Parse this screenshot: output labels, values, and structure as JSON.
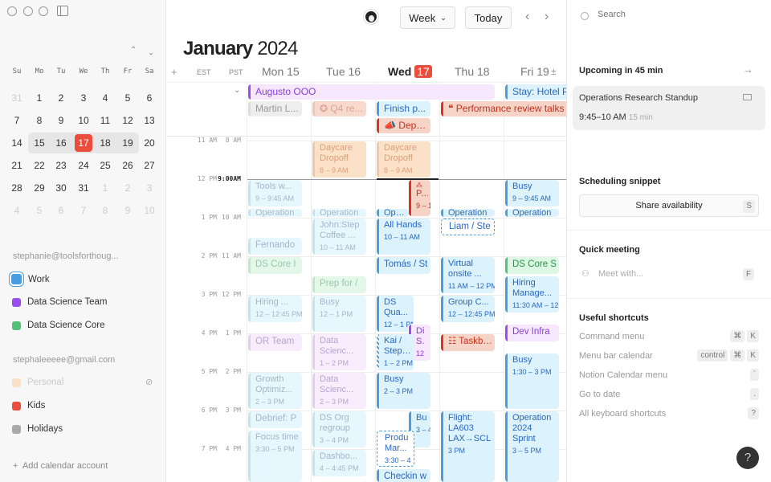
{
  "sidebar": {
    "mini_calendar": {
      "weekdays": [
        "Su",
        "Mo",
        "Tu",
        "We",
        "Th",
        "Fr",
        "Sa"
      ],
      "weeks": [
        [
          31,
          1,
          2,
          3,
          4,
          5,
          6
        ],
        [
          7,
          8,
          9,
          10,
          11,
          12,
          13
        ],
        [
          14,
          15,
          16,
          17,
          18,
          19,
          20
        ],
        [
          21,
          22,
          23,
          24,
          25,
          26,
          27
        ],
        [
          28,
          29,
          30,
          31,
          1,
          2,
          3
        ],
        [
          4,
          5,
          6,
          7,
          8,
          9,
          10
        ]
      ],
      "today": 17
    },
    "accounts": [
      {
        "email": "stephanie@toolsforthoug...",
        "calendars": [
          {
            "name": "Work",
            "color": "#4a9de0",
            "selected": true
          },
          {
            "name": "Data Science Team",
            "color": "#9b4ef0"
          },
          {
            "name": "Data Science Core",
            "color": "#52c279"
          }
        ]
      },
      {
        "email": "stephaleeeee@gmail.com",
        "calendars": [
          {
            "name": "Personal",
            "color": "#f9e0c7",
            "hidden": true
          },
          {
            "name": "Kids",
            "color": "#eb4d3d"
          },
          {
            "name": "Holidays",
            "color": "#aaaaaa",
            "icon": "rss-icon"
          }
        ]
      }
    ],
    "add_account": "Add calendar account"
  },
  "header": {
    "view": "Week",
    "today": "Today",
    "month": "January",
    "year": "2024",
    "tz1": "EST",
    "tz2": "PST",
    "days": [
      {
        "name": "Mon",
        "num": "15"
      },
      {
        "name": "Tue",
        "num": "16"
      },
      {
        "name": "Wed",
        "num": "17",
        "today": true
      },
      {
        "name": "Thu",
        "num": "18"
      },
      {
        "name": "Fri",
        "num": "19"
      }
    ]
  },
  "time_labels": {
    "est": [
      "11 AM",
      "12 PM",
      "1 PM",
      "2 PM",
      "3 PM",
      "4 PM",
      "5 PM",
      "6 PM",
      "7 PM"
    ],
    "pst": [
      "8 AM",
      "9:00AM",
      "10 AM",
      "11 AM",
      "12 PM",
      "1 PM",
      "2 PM",
      "3 PM",
      "4 PM"
    ]
  },
  "now": "09:00",
  "allday": [
    {
      "title": "Augusto OOO",
      "start": "Mon",
      "end": "Thu",
      "style": "purple"
    },
    {
      "title": "Stay: Hotel P",
      "start": "Fri",
      "end": "Fri",
      "style": "blue"
    },
    {
      "title": "Martin L...",
      "start": "Mon",
      "end": "Mon",
      "style": "gray"
    },
    {
      "title": "✪ Q4 re...",
      "start": "Tue",
      "end": "Tue",
      "style": "red",
      "past": true
    },
    {
      "title": "Finish p...",
      "start": "Wed",
      "end": "Wed",
      "style": "blue"
    },
    {
      "title": "❝ Performance review talks",
      "start": "Thu",
      "end": "Fri",
      "style": "red"
    },
    {
      "title": "📣 Dept ...",
      "start": "Wed",
      "end": "Wed",
      "style": "red"
    }
  ],
  "events": [
    {
      "day": "Mon",
      "start": "09:00",
      "end": "09:45",
      "title": "Tools w...",
      "time": "9 – 9:45 AM",
      "style": "blue",
      "past": true
    },
    {
      "day": "Mon",
      "start": "09:45",
      "end": "10:00",
      "title": "Operation",
      "style": "blue",
      "past": true
    },
    {
      "day": "Mon",
      "start": "10:30",
      "end": "11:00",
      "title": "Fernando",
      "style": "blue",
      "past": true
    },
    {
      "day": "Mon",
      "start": "11:00",
      "end": "11:30",
      "title": "DS Core I",
      "style": "green",
      "past": true
    },
    {
      "day": "Mon",
      "start": "12:00",
      "end": "12:45",
      "title": "Hiring ...",
      "time": "12 – 12:45 PM",
      "style": "blue",
      "past": true
    },
    {
      "day": "Mon",
      "start": "13:00",
      "end": "13:30",
      "title": "OR Team",
      "style": "purple",
      "past": true
    },
    {
      "day": "Mon",
      "start": "14:00",
      "end": "15:00",
      "title": "Growth Optimiz...",
      "time": "2 – 3 PM",
      "style": "blue",
      "past": true
    },
    {
      "day": "Mon",
      "start": "15:00",
      "end": "15:30",
      "title": "Debrief: P",
      "style": "blue",
      "past": true
    },
    {
      "day": "Mon",
      "start": "15:30",
      "end": "17:00",
      "title": "Focus time",
      "time": "3:30 – 5 PM",
      "style": "blue",
      "past": true
    },
    {
      "day": "Tue",
      "start": "08:00",
      "end": "09:00",
      "title": "Daycare Dropoff",
      "time": "8 – 9 AM",
      "style": "peach",
      "past": true
    },
    {
      "day": "Tue",
      "start": "09:45",
      "end": "10:00",
      "title": "Operation",
      "style": "blue",
      "past": true
    },
    {
      "day": "Tue",
      "start": "10:00",
      "end": "11:00",
      "title": "John:Step Coffee ...",
      "time": "10 – 11 AM",
      "style": "blue",
      "past": true
    },
    {
      "day": "Tue",
      "start": "11:30",
      "end": "12:00",
      "title": "Prep for /",
      "style": "green",
      "past": true
    },
    {
      "day": "Tue",
      "start": "12:00",
      "end": "13:00",
      "title": "Busy",
      "time": "12 – 1 PM",
      "style": "blue",
      "past": true
    },
    {
      "day": "Tue",
      "start": "13:00",
      "end": "14:00",
      "title": "Data Scienc...",
      "time": "1 – 2 PM",
      "style": "purple",
      "past": true
    },
    {
      "day": "Tue",
      "start": "14:00",
      "end": "15:00",
      "title": "Data Scienc...",
      "time": "2 – 3 PM",
      "style": "purple",
      "past": true
    },
    {
      "day": "Tue",
      "start": "15:00",
      "end": "16:00",
      "title": "DS Org regroup",
      "time": "3 – 4 PM",
      "style": "blue",
      "past": true
    },
    {
      "day": "Tue",
      "start": "16:00",
      "end": "16:45",
      "title": "Dashbo...",
      "time": "4 – 4:45 PM",
      "style": "blue",
      "past": true
    },
    {
      "day": "Wed",
      "start": "08:00",
      "end": "09:00",
      "title": "Daycare Dropoff",
      "time": "8 – 9 AM",
      "style": "peach",
      "past": true
    },
    {
      "day": "Wed",
      "start": "09:00",
      "end": "10:00",
      "title": "P...",
      "time": "9 – 10 AM",
      "style": "red",
      "icon": "people-icon"
    },
    {
      "day": "Wed",
      "start": "09:45",
      "end": "10:00",
      "title": "Operation",
      "style": "blue"
    },
    {
      "day": "Wed",
      "start": "10:00",
      "end": "11:00",
      "title": "All Hands",
      "time": "10 – 11 AM",
      "style": "blue"
    },
    {
      "day": "Wed",
      "start": "11:00",
      "end": "11:30",
      "title": "Tomás / St",
      "style": "blue"
    },
    {
      "day": "Wed",
      "start": "12:00",
      "end": "13:00",
      "title": "DS Qua...",
      "time": "12 – 1 PM",
      "style": "blue"
    },
    {
      "day": "Wed",
      "start": "12:45",
      "end": "13:45",
      "title": "Di S.",
      "time": "12",
      "style": "purple"
    },
    {
      "day": "Wed",
      "start": "13:00",
      "end": "14:00",
      "title": "Kai / Stepha",
      "time": "1 – 2 PM",
      "style": "blue",
      "striped": true
    },
    {
      "day": "Wed",
      "start": "14:00",
      "end": "15:00",
      "title": "Busy",
      "time": "2 – 3 PM",
      "style": "blue"
    },
    {
      "day": "Wed",
      "start": "15:00",
      "end": "16:00",
      "title": "Bu",
      "time": "3 – 4",
      "style": "blue"
    },
    {
      "day": "Wed",
      "start": "15:30",
      "end": "16:30",
      "title": "Produ Mar...",
      "time": "3:30 – 4",
      "style": "dashed"
    },
    {
      "day": "Wed",
      "start": "16:30",
      "end": "17:00",
      "title": "Checkin w",
      "style": "blue"
    },
    {
      "day": "Thu",
      "start": "09:45",
      "end": "10:00",
      "title": "Operation",
      "style": "blue"
    },
    {
      "day": "Thu",
      "start": "10:00",
      "end": "10:30",
      "title": "Liam / Ste",
      "style": "dashed"
    },
    {
      "day": "Thu",
      "start": "11:00",
      "end": "12:00",
      "title": "Virtual onsite ...",
      "time": "11 AM – 12 PM",
      "style": "blue"
    },
    {
      "day": "Thu",
      "start": "12:00",
      "end": "12:45",
      "title": "Group C...",
      "time": "12 – 12:45 PM",
      "style": "blue"
    },
    {
      "day": "Thu",
      "start": "13:00",
      "end": "13:30",
      "title": "☷ Taskboa",
      "style": "red"
    },
    {
      "day": "Thu",
      "start": "15:00",
      "end": "17:00",
      "title": "Flight: LA603 LAX→SCL",
      "time": "3 PM",
      "style": "blue"
    },
    {
      "day": "Fri",
      "start": "09:00",
      "end": "09:45",
      "title": "Busy",
      "time": "9 – 9:45 AM",
      "style": "blue"
    },
    {
      "day": "Fri",
      "start": "09:45",
      "end": "10:00",
      "title": "Operation",
      "style": "blue"
    },
    {
      "day": "Fri",
      "start": "11:00",
      "end": "11:30",
      "title": "DS Core S",
      "style": "green"
    },
    {
      "day": "Fri",
      "start": "11:30",
      "end": "12:30",
      "title": "Hiring Manage...",
      "time": "11:30 AM – 12",
      "style": "blue"
    },
    {
      "day": "Fri",
      "start": "12:45",
      "end": "13:15",
      "title": "Dev Infra",
      "style": "purple"
    },
    {
      "day": "Fri",
      "start": "13:30",
      "end": "15:00",
      "title": "Busy",
      "time": "1:30 – 3 PM",
      "style": "blue"
    },
    {
      "day": "Fri",
      "start": "15:00",
      "end": "17:00",
      "title": "Operation 2024 Sprint Planning",
      "time": "3 – 5 PM",
      "style": "blue"
    }
  ],
  "right_panel": {
    "search_placeholder": "Search",
    "upcoming": {
      "heading": "Upcoming in 45 min",
      "title": "Operations Research Standup",
      "time": "9:45–10 AM",
      "duration": "15 min"
    },
    "snippet": {
      "heading": "Scheduling snippet",
      "button": "Share availability",
      "key": "S"
    },
    "quick": {
      "heading": "Quick meeting",
      "placeholder": "Meet with...",
      "key": "F"
    },
    "shortcuts": {
      "heading": "Useful shortcuts",
      "items": [
        {
          "label": "Command menu",
          "keys": [
            "⌘",
            "K"
          ]
        },
        {
          "label": "Menu bar calendar",
          "keys": [
            "control",
            "⌘",
            "K"
          ]
        },
        {
          "label": "Notion Calendar menu",
          "keys": [
            "`"
          ]
        },
        {
          "label": "Go to date",
          "keys": [
            "."
          ]
        },
        {
          "label": "All keyboard shortcuts",
          "keys": [
            "?"
          ]
        }
      ]
    },
    "help": "?"
  }
}
